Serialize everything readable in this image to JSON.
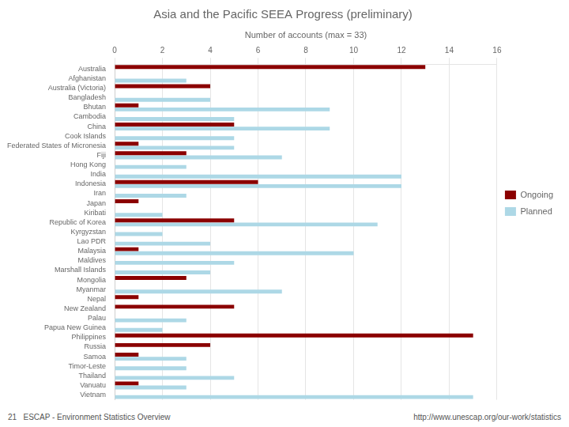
{
  "chart_data": {
    "type": "bar",
    "orientation": "horizontal",
    "title": "Asia and the Pacific SEEA Progress (preliminary)",
    "xlabel": "Number of accounts (max = 33)",
    "categories": [
      "Australia",
      "Afghanistan",
      "Australia (Victoria)",
      "Bangladesh",
      "Bhutan",
      "Cambodia",
      "China",
      "Cook Islands",
      "Federated States of Micronesia",
      "Fiji",
      "Hong Kong",
      "India",
      "Indonesia",
      "Iran",
      "Japan",
      "Kiribati",
      "Republic of Korea",
      "Kyrgyzstan",
      "Lao PDR",
      "Malaysia",
      "Maldives",
      "Marshall Islands",
      "Mongolia",
      "Myanmar",
      "Nepal",
      "New Zealand",
      "Palau",
      "Papua New Guinea",
      "Philippines",
      "Russia",
      "Samoa",
      "Timor-Leste",
      "Thailand",
      "Vanuatu",
      "Vietnam"
    ],
    "series": [
      {
        "name": "Ongoing",
        "color": "#8B0000",
        "values": [
          13,
          0,
          4,
          0,
          1,
          0,
          5,
          0,
          1,
          3,
          0,
          0,
          6,
          0,
          1,
          0,
          5,
          0,
          0,
          1,
          0,
          0,
          3,
          0,
          1,
          5,
          0,
          0,
          15,
          4,
          1,
          0,
          0,
          1,
          0
        ]
      },
      {
        "name": "Planned",
        "color": "#ADD8E6",
        "values": [
          0,
          3,
          0,
          4,
          9,
          5,
          9,
          5,
          5,
          7,
          3,
          12,
          12,
          3,
          0,
          2,
          11,
          2,
          4,
          10,
          5,
          4,
          0,
          7,
          0,
          0,
          3,
          2,
          0,
          0,
          3,
          3,
          5,
          3,
          15
        ]
      }
    ],
    "xlim": [
      0,
      16
    ],
    "xticks": [
      0,
      2,
      4,
      6,
      8,
      10,
      12,
      14,
      16
    ],
    "grid": true,
    "legend": "right",
    "annotations": [
      "21   ESCAP - Environment Statistics Overview",
      "http://www.unescap.org/our-work/statistics"
    ]
  }
}
